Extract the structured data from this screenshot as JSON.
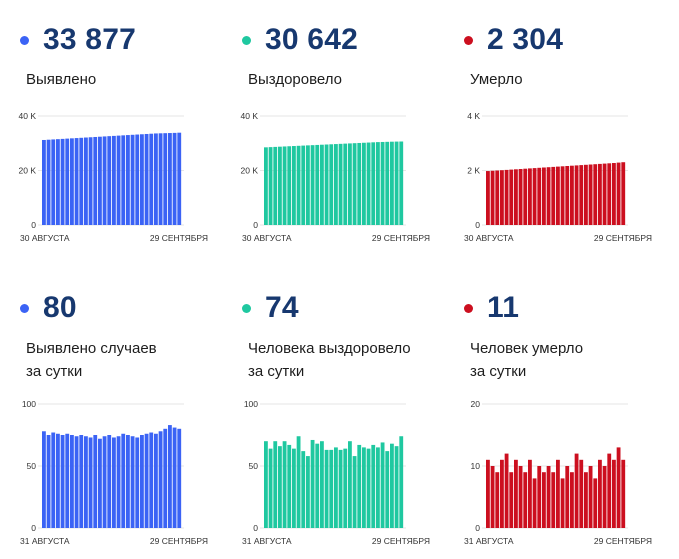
{
  "panels": [
    {
      "value": "33 877",
      "label": "Выявлено",
      "color": "#3b63f5",
      "chart_data": {
        "type": "bar",
        "title": "Выявлено",
        "x_start_label": "30 АВГУСТА",
        "x_end_label": "29 СЕНТЯБРЯ",
        "yticks": [
          "0",
          "20 K",
          "40 K"
        ],
        "ylim": [
          0,
          40000
        ],
        "values": [
          31200,
          31300,
          31400,
          31500,
          31600,
          31700,
          31800,
          31900,
          32000,
          32100,
          32200,
          32300,
          32400,
          32500,
          32600,
          32700,
          32800,
          32900,
          33000,
          33100,
          33200,
          33300,
          33400,
          33500,
          33600,
          33650,
          33700,
          33750,
          33800,
          33877
        ]
      }
    },
    {
      "value": "30 642",
      "label": "Выздоровело",
      "color": "#1fc8a0",
      "chart_data": {
        "type": "bar",
        "title": "Выздоровело",
        "x_start_label": "30 АВГУСТА",
        "x_end_label": "29 СЕНТЯБРЯ",
        "yticks": [
          "0",
          "20 K",
          "40 K"
        ],
        "ylim": [
          0,
          40000
        ],
        "values": [
          28500,
          28580,
          28660,
          28740,
          28820,
          28900,
          28980,
          29060,
          29140,
          29220,
          29300,
          29380,
          29460,
          29540,
          29620,
          29700,
          29780,
          29860,
          29940,
          30020,
          30100,
          30180,
          30260,
          30340,
          30420,
          30470,
          30520,
          30570,
          30610,
          30642
        ]
      }
    },
    {
      "value": "2 304",
      "label": "Умерло",
      "color": "#cc0f1f",
      "chart_data": {
        "type": "bar",
        "title": "Умерло",
        "x_start_label": "30 АВГУСТА",
        "x_end_label": "29 СЕНТЯБРЯ",
        "yticks": [
          "0",
          "2 K",
          "4 K"
        ],
        "ylim": [
          0,
          4000
        ],
        "values": [
          1980,
          1990,
          2000,
          2011,
          2022,
          2033,
          2044,
          2055,
          2066,
          2077,
          2088,
          2099,
          2110,
          2121,
          2132,
          2143,
          2154,
          2165,
          2176,
          2187,
          2198,
          2209,
          2220,
          2231,
          2242,
          2253,
          2264,
          2275,
          2290,
          2304
        ]
      }
    },
    {
      "value": "80",
      "label_line1": "Выявлено случаев",
      "label_line2": "за сутки",
      "color": "#3b63f5",
      "chart_data": {
        "type": "bar",
        "title": "Выявлено случаев за сутки",
        "x_start_label": "31 АВГУСТА",
        "x_end_label": "29 СЕНТЯБРЯ",
        "yticks": [
          "0",
          "50",
          "100"
        ],
        "ylim": [
          0,
          100
        ],
        "values": [
          78,
          75,
          77,
          76,
          75,
          76,
          75,
          74,
          75,
          74,
          73,
          75,
          72,
          74,
          75,
          73,
          74,
          76,
          75,
          74,
          73,
          75,
          76,
          77,
          76,
          78,
          80,
          83,
          81,
          80
        ]
      }
    },
    {
      "value": "74",
      "label_line1": "Человека выздоровело",
      "label_line2": "за сутки",
      "color": "#1fc8a0",
      "chart_data": {
        "type": "bar",
        "title": "Человека выздоровело за сутки",
        "x_start_label": "31 АВГУСТА",
        "x_end_label": "29 СЕНТЯБРЯ",
        "yticks": [
          "0",
          "50",
          "100"
        ],
        "ylim": [
          0,
          100
        ],
        "values": [
          70,
          64,
          70,
          66,
          70,
          67,
          64,
          74,
          62,
          58,
          71,
          68,
          70,
          63,
          63,
          65,
          63,
          64,
          70,
          58,
          67,
          65,
          64,
          67,
          65,
          69,
          62,
          68,
          66,
          74
        ]
      }
    },
    {
      "value": "11",
      "label_line1": "Человек умерло",
      "label_line2": "за сутки",
      "color": "#cc0f1f",
      "chart_data": {
        "type": "bar",
        "title": "Человек умерло за сутки",
        "x_start_label": "31 АВГУСТА",
        "x_end_label": "29 СЕНТЯБРЯ",
        "yticks": [
          "0",
          "10",
          "20"
        ],
        "ylim": [
          0,
          20
        ],
        "values": [
          11,
          10,
          9,
          11,
          12,
          9,
          11,
          10,
          9,
          11,
          8,
          10,
          9,
          10,
          9,
          11,
          8,
          10,
          9,
          12,
          11,
          9,
          10,
          8,
          11,
          10,
          12,
          11,
          13,
          11
        ]
      }
    }
  ]
}
